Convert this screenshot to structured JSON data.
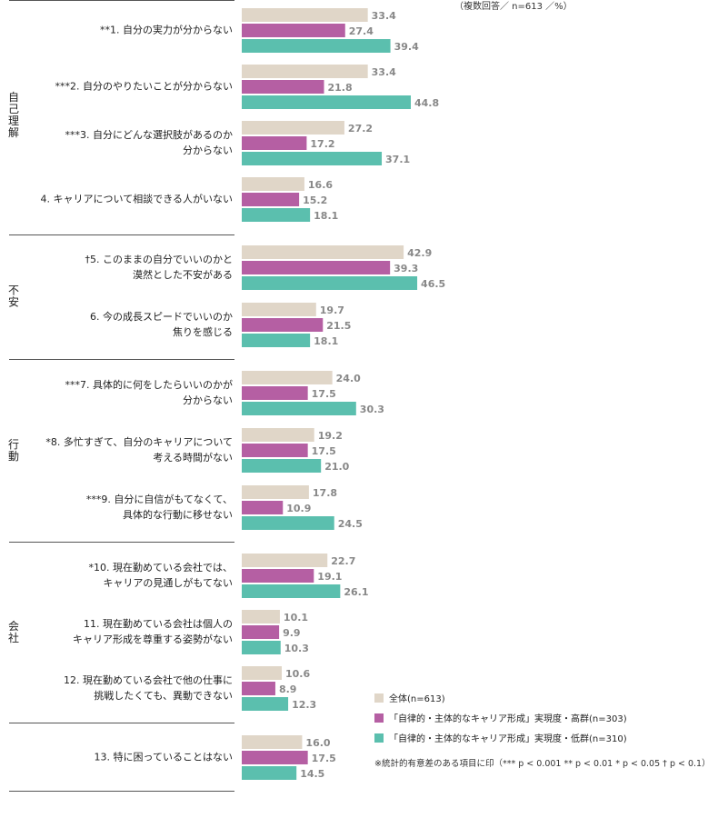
{
  "note_top": "（複数回答／ n=613 ／%）",
  "footnote": "※統計的有意差のある項目に印（*** p < 0.001 ** p < 0.01 * p < 0.05 † p < 0.1）",
  "chart_data": {
    "type": "bar",
    "orientation": "horizontal",
    "xlim": [
      0,
      50
    ],
    "groups": [
      {
        "label": "自己理解",
        "items": [
          0,
          1,
          2,
          3
        ]
      },
      {
        "label": "不安",
        "items": [
          4,
          5
        ]
      },
      {
        "label": "行動",
        "items": [
          6,
          7,
          8
        ]
      },
      {
        "label": "会社",
        "items": [
          9,
          10,
          11
        ]
      },
      {
        "label": "",
        "items": [
          12
        ]
      }
    ],
    "categories": [
      [
        "**1. 自分の実力が分からない"
      ],
      [
        "***2. 自分のやりたいことが分からない"
      ],
      [
        "***3. 自分にどんな選択肢があるのか",
        "分からない"
      ],
      [
        "4. キャリアについて相談できる人がいない"
      ],
      [
        "†5. このままの自分でいいのかと",
        "漠然とした不安がある"
      ],
      [
        "6. 今の成長スピードでいいのか",
        "焦りを感じる"
      ],
      [
        "***7. 具体的に何をしたらいいのかが",
        "分からない"
      ],
      [
        "*8. 多忙すぎて、自分のキャリアについて",
        "考える時間がない"
      ],
      [
        "***9. 自分に自信がもてなくて、",
        "具体的な行動に移せない"
      ],
      [
        "*10. 現在勤めている会社では、",
        "キャリアの見通しがもてない"
      ],
      [
        "11. 現在勤めている会社は個人の",
        "キャリア形成を尊重する姿勢がない"
      ],
      [
        "12. 現在勤めている会社で他の仕事に",
        "挑戦したくても、異動できない"
      ],
      [
        "13. 特に困っていることはない"
      ]
    ],
    "series": [
      {
        "name": "全体(n=613)",
        "color": "#e0d6c8",
        "values": [
          33.4,
          33.4,
          27.2,
          16.6,
          42.9,
          19.7,
          24.0,
          19.2,
          17.8,
          22.7,
          10.1,
          10.6,
          16.0
        ]
      },
      {
        "name": "「自律的・主体的なキャリア形成」実現度・高群(n=303)",
        "color": "#b55fa3",
        "values": [
          27.4,
          21.8,
          17.2,
          15.2,
          39.3,
          21.5,
          17.5,
          17.5,
          10.9,
          19.1,
          9.9,
          8.9,
          17.5
        ]
      },
      {
        "name": "「自律的・主体的なキャリア形成」実現度・低群(n=310)",
        "color": "#5bbfae",
        "values": [
          39.4,
          44.8,
          37.1,
          18.1,
          46.5,
          18.1,
          30.3,
          21.0,
          24.5,
          26.1,
          10.3,
          12.3,
          14.5
        ]
      }
    ]
  }
}
